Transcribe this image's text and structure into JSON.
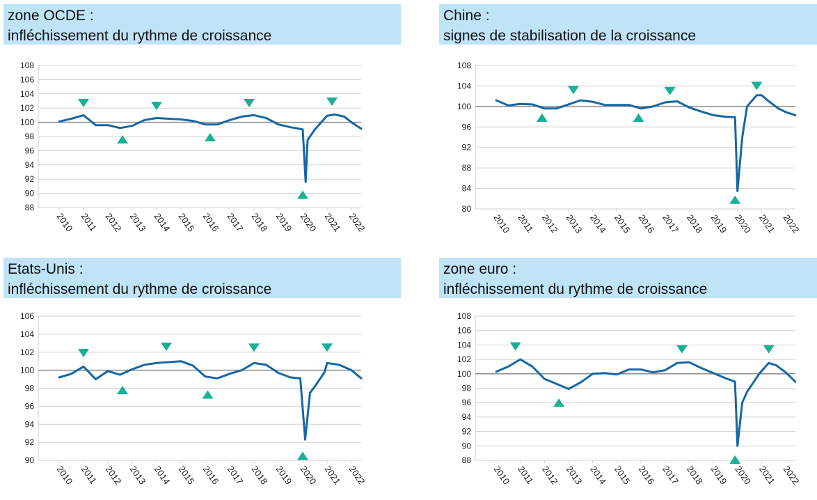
{
  "colors": {
    "header_bg": "#bfe3f7",
    "series": "#1667a3",
    "marker": "#18b096",
    "gridline": "#d0d0d0",
    "baseline": "#8a8a8a"
  },
  "panels": [
    {
      "title_line1": "zone OCDE :",
      "title_line2": " infléchissement du rythme de croissance"
    },
    {
      "title_line1": "Chine :",
      "title_line2": "signes de stabilisation de la croissance"
    },
    {
      "title_line1": "Etats-Unis :",
      "title_line2": "infléchissement du rythme de croissance"
    },
    {
      "title_line1": "zone euro :",
      "title_line2": "infléchissement du rythme de croissance"
    }
  ],
  "chart_data": [
    {
      "type": "line",
      "title": "zone OCDE : infléchissement du rythme de croissance",
      "x_tick_labels": [
        "2010",
        "2011",
        "2012",
        "2013",
        "2014",
        "2015",
        "2016",
        "2017",
        "2018",
        "2019",
        "2020",
        "2021",
        "2022"
      ],
      "y_ticks": [
        88,
        90,
        92,
        94,
        96,
        98,
        100,
        102,
        104,
        106,
        108
      ],
      "ylim": [
        88,
        108
      ],
      "baseline": 100,
      "grid": true,
      "series": [
        {
          "x": [
            2010,
            2010.5,
            2011,
            2011.5,
            2012,
            2012.5,
            2013,
            2013.5,
            2014,
            2014.5,
            2015,
            2015.5,
            2016,
            2016.5,
            2017,
            2017.5,
            2018,
            2018.5,
            2019,
            2019.5,
            2020,
            2020.12,
            2020.2,
            2020.3,
            2020.5,
            2021,
            2021.3,
            2021.7,
            2022,
            2022.4
          ],
          "y": [
            100.1,
            100.5,
            101.0,
            99.6,
            99.6,
            99.2,
            99.5,
            100.3,
            100.6,
            100.5,
            100.4,
            100.2,
            99.7,
            99.7,
            100.3,
            100.8,
            101.0,
            100.6,
            99.7,
            99.3,
            99.0,
            91.6,
            97.5,
            98.0,
            99.0,
            100.9,
            101.1,
            100.8,
            100.0,
            99.1
          ]
        }
      ],
      "markers": [
        {
          "kind": "peak",
          "x": 2011.0,
          "y": 102.7
        },
        {
          "kind": "trough",
          "x": 2012.6,
          "y": 97.6
        },
        {
          "kind": "peak",
          "x": 2014.0,
          "y": 102.3
        },
        {
          "kind": "trough",
          "x": 2016.2,
          "y": 97.9
        },
        {
          "kind": "peak",
          "x": 2017.8,
          "y": 102.7
        },
        {
          "kind": "trough",
          "x": 2020.0,
          "y": 89.8
        },
        {
          "kind": "peak",
          "x": 2021.2,
          "y": 102.9
        }
      ]
    },
    {
      "type": "line",
      "title": "Chine : signes de stabilisation de la croissance",
      "x_tick_labels": [
        "2010",
        "2011",
        "2012",
        "2013",
        "2014",
        "2015",
        "2016",
        "2017",
        "2018",
        "2019",
        "2020",
        "2021",
        "2022"
      ],
      "y_ticks": [
        80,
        84,
        88,
        92,
        96,
        100,
        104,
        108
      ],
      "ylim": [
        80,
        108
      ],
      "baseline": 100,
      "grid": true,
      "series": [
        {
          "x": [
            2010,
            2010.5,
            2011,
            2011.5,
            2012,
            2012.5,
            2013,
            2013.5,
            2014,
            2014.5,
            2015,
            2015.5,
            2016,
            2016.5,
            2017,
            2017.5,
            2018,
            2018.5,
            2019,
            2019.5,
            2019.9,
            2020.0,
            2020.2,
            2020.4,
            2020.8,
            2021,
            2021.3,
            2021.7,
            2022,
            2022.4
          ],
          "y": [
            101.2,
            100.2,
            100.5,
            100.4,
            99.6,
            99.6,
            100.4,
            101.2,
            100.9,
            100.3,
            100.3,
            100.3,
            99.6,
            100.0,
            100.8,
            101.0,
            99.8,
            99.0,
            98.3,
            98.0,
            97.9,
            83.5,
            94.0,
            100.0,
            102.2,
            102.2,
            101.0,
            99.6,
            98.9,
            98.3
          ]
        }
      ],
      "markers": [
        {
          "kind": "trough",
          "x": 2011.9,
          "y": 97.8
        },
        {
          "kind": "peak",
          "x": 2013.2,
          "y": 103.2
        },
        {
          "kind": "trough",
          "x": 2015.9,
          "y": 97.8
        },
        {
          "kind": "peak",
          "x": 2017.2,
          "y": 103.0
        },
        {
          "kind": "trough",
          "x": 2019.9,
          "y": 81.8
        },
        {
          "kind": "peak",
          "x": 2020.8,
          "y": 104.0
        }
      ]
    },
    {
      "type": "line",
      "title": "Etats-Unis : infléchissement du rythme de croissance",
      "x_tick_labels": [
        "2010",
        "2011",
        "2012",
        "2013",
        "2014",
        "2015",
        "2016",
        "2017",
        "2018",
        "2019",
        "2020",
        "2021",
        "2022"
      ],
      "y_ticks": [
        90,
        92,
        94,
        96,
        98,
        100,
        102,
        104,
        106
      ],
      "ylim": [
        90,
        106
      ],
      "baseline": 100,
      "grid": true,
      "series": [
        {
          "x": [
            2010,
            2010.5,
            2011,
            2011.5,
            2012,
            2012.5,
            2013,
            2013.5,
            2014,
            2014.5,
            2015,
            2015.5,
            2016,
            2016.5,
            2017,
            2017.5,
            2018,
            2018.5,
            2019,
            2019.5,
            2019.9,
            2020.1,
            2020.3,
            2020.5,
            2020.9,
            2021,
            2021.5,
            2022,
            2022.4
          ],
          "y": [
            99.2,
            99.6,
            100.4,
            99.0,
            99.9,
            99.5,
            100.1,
            100.6,
            100.8,
            100.9,
            101.0,
            100.5,
            99.3,
            99.1,
            99.6,
            100.0,
            100.8,
            100.6,
            99.7,
            99.2,
            99.1,
            92.3,
            97.5,
            98.2,
            99.8,
            100.8,
            100.6,
            100.0,
            99.1
          ]
        }
      ],
      "markers": [
        {
          "kind": "peak",
          "x": 2011.0,
          "y": 101.9
        },
        {
          "kind": "trough",
          "x": 2012.6,
          "y": 97.8
        },
        {
          "kind": "peak",
          "x": 2014.4,
          "y": 102.6
        },
        {
          "kind": "trough",
          "x": 2016.1,
          "y": 97.3
        },
        {
          "kind": "peak",
          "x": 2018.0,
          "y": 102.5
        },
        {
          "kind": "trough",
          "x": 2020.0,
          "y": 90.5
        },
        {
          "kind": "peak",
          "x": 2021.0,
          "y": 102.5
        }
      ]
    },
    {
      "type": "line",
      "title": "zone euro : infléchissement du rythme de croissance",
      "x_tick_labels": [
        "2010",
        "2011",
        "2012",
        "2013",
        "2014",
        "2015",
        "2016",
        "2017",
        "2018",
        "2019",
        "2020",
        "2021",
        "2022"
      ],
      "y_ticks": [
        88,
        90,
        92,
        94,
        96,
        98,
        100,
        102,
        104,
        106,
        108
      ],
      "ylim": [
        88,
        108
      ],
      "baseline": 100,
      "grid": true,
      "series": [
        {
          "x": [
            2010,
            2010.5,
            2011,
            2011.5,
            2012,
            2012.5,
            2013,
            2013.5,
            2014,
            2014.5,
            2015,
            2015.5,
            2016,
            2016.5,
            2017,
            2017.5,
            2018,
            2018.5,
            2019,
            2019.5,
            2019.9,
            2020.0,
            2020.2,
            2020.4,
            2020.9,
            2021.3,
            2021.6,
            2022,
            2022.4
          ],
          "y": [
            100.3,
            101.0,
            102.0,
            101.0,
            99.3,
            98.6,
            97.9,
            98.8,
            100.0,
            100.1,
            99.9,
            100.6,
            100.6,
            100.2,
            100.5,
            101.5,
            101.6,
            100.8,
            100.1,
            99.4,
            98.9,
            90.0,
            96.0,
            97.5,
            100.0,
            101.5,
            101.2,
            100.2,
            98.9
          ]
        }
      ],
      "markers": [
        {
          "kind": "peak",
          "x": 2010.8,
          "y": 103.8
        },
        {
          "kind": "trough",
          "x": 2012.6,
          "y": 96.0
        },
        {
          "kind": "peak",
          "x": 2017.7,
          "y": 103.4
        },
        {
          "kind": "trough",
          "x": 2019.9,
          "y": 88.1
        },
        {
          "kind": "peak",
          "x": 2021.3,
          "y": 103.4
        }
      ]
    }
  ]
}
